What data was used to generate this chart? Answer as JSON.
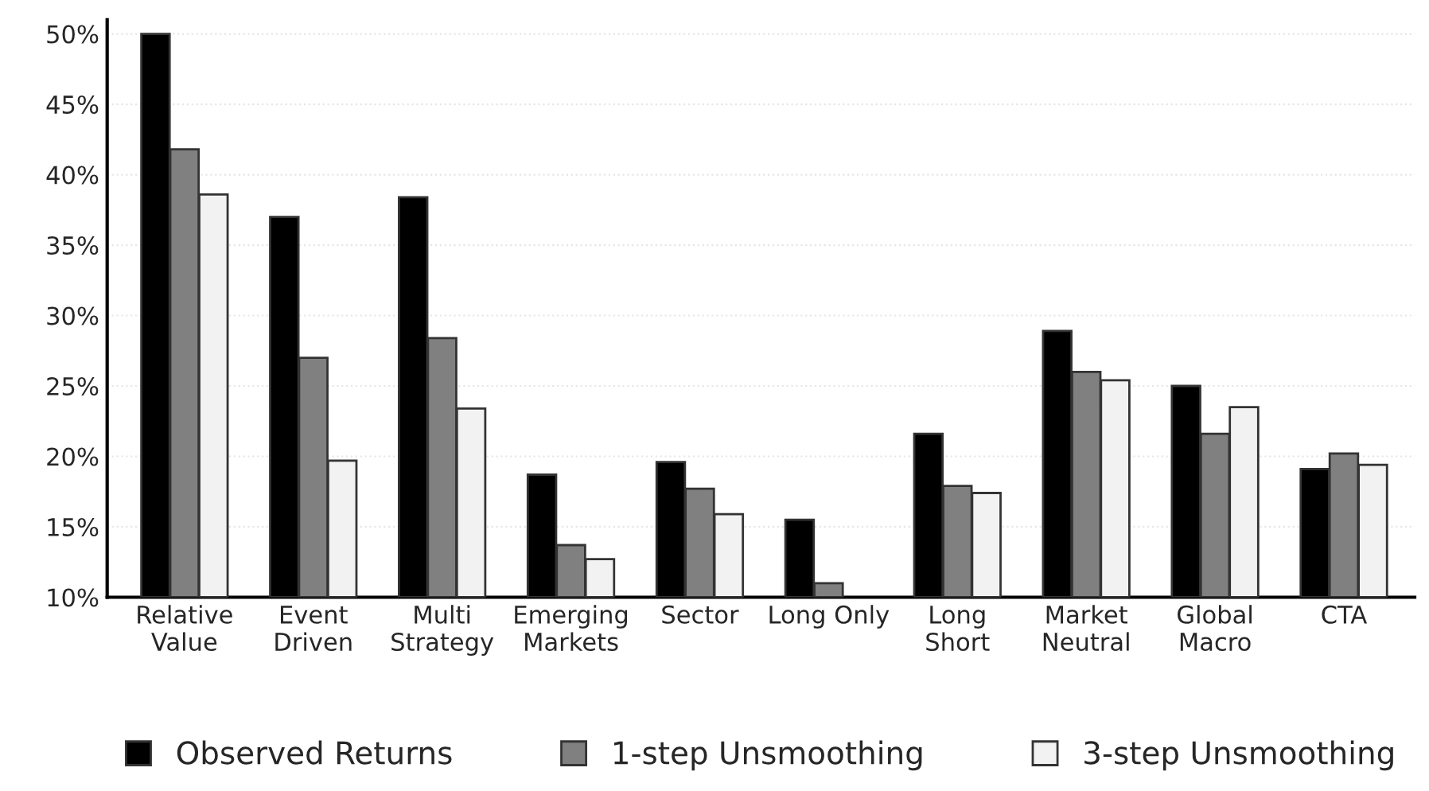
{
  "chart_data": {
    "type": "bar",
    "categories": [
      "Relative\nValue",
      "Event\nDriven",
      "Multi\nStrategy",
      "Emerging\nMarkets",
      "Sector",
      "Long Only",
      "Long\nShort",
      "Market\nNeutral",
      "Global\nMacro",
      "CTA"
    ],
    "series": [
      {
        "name": "Observed Returns",
        "color": "#000000",
        "values": [
          50.0,
          37.0,
          38.4,
          18.7,
          19.6,
          15.5,
          21.6,
          28.9,
          25.0,
          19.1
        ]
      },
      {
        "name": "1-step Unsmoothing",
        "color": "#808080",
        "values": [
          41.8,
          27.0,
          28.4,
          13.7,
          17.7,
          11.0,
          17.9,
          26.0,
          21.6,
          20.2
        ]
      },
      {
        "name": "3-step Unsmoothing",
        "color": "#f2f2f2",
        "values": [
          38.6,
          19.7,
          23.4,
          12.7,
          15.9,
          null,
          17.4,
          25.4,
          23.5,
          19.4
        ]
      }
    ],
    "ylim": [
      10,
      51
    ],
    "yticks": [
      {
        "value": 10,
        "label": "10%"
      },
      {
        "value": 15,
        "label": "15%"
      },
      {
        "value": 20,
        "label": "20%"
      },
      {
        "value": 25,
        "label": "25%"
      },
      {
        "value": 30,
        "label": "30%"
      },
      {
        "value": 35,
        "label": "35%"
      },
      {
        "value": 40,
        "label": "40%"
      },
      {
        "value": 45,
        "label": "45%"
      },
      {
        "value": 50,
        "label": "50%"
      }
    ],
    "grid": "y",
    "legend": "bottom"
  }
}
